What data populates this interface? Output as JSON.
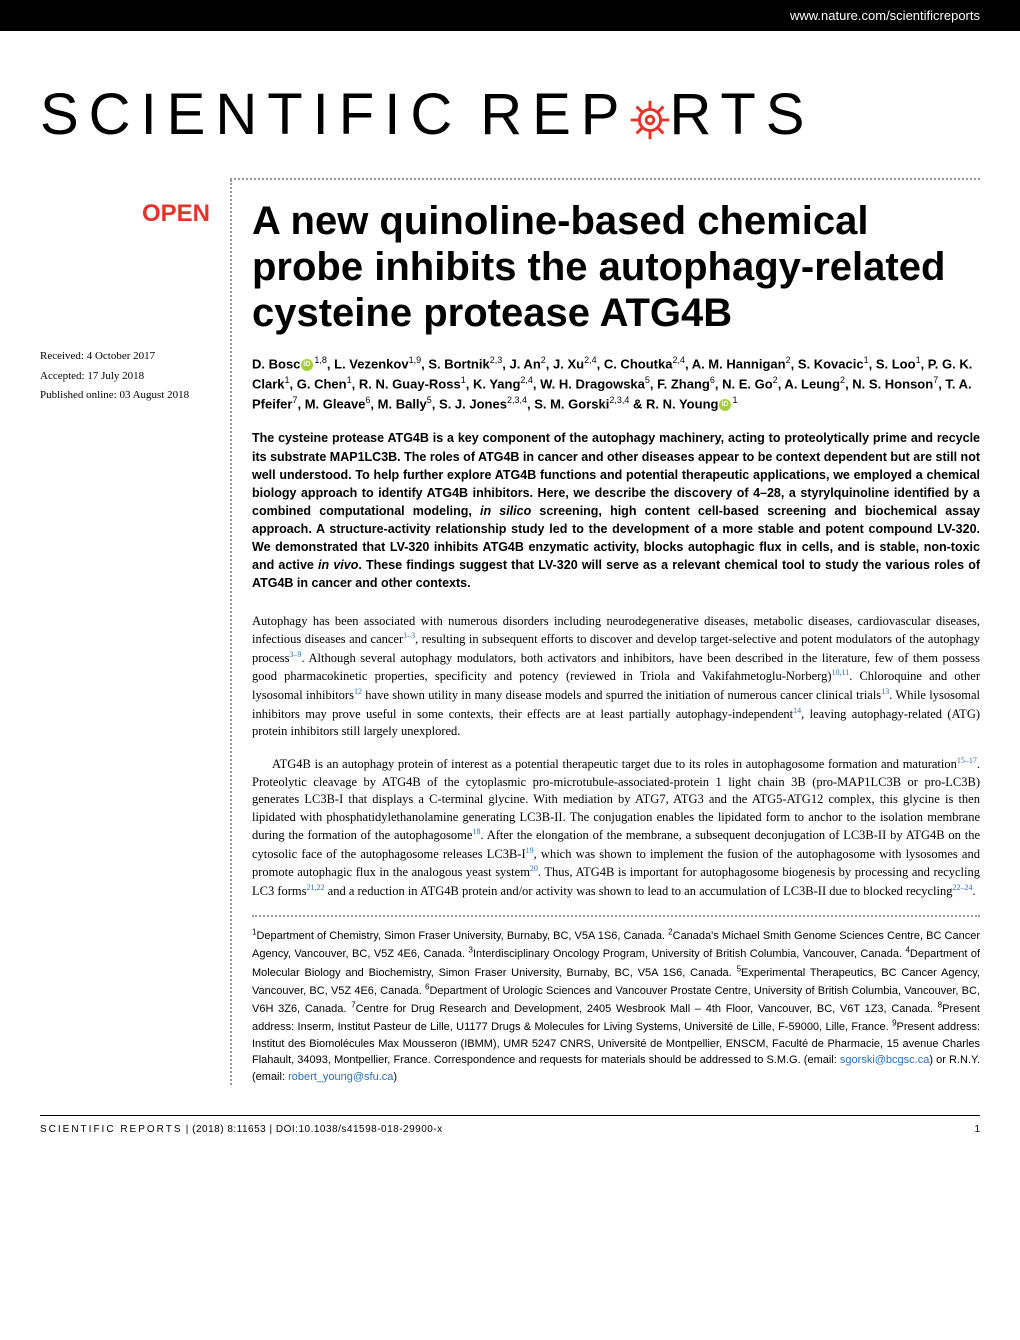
{
  "header": {
    "url": "www.nature.com/scientificreports"
  },
  "logo": {
    "text_before": "SCIENTIFIC",
    "text_mid": "REP",
    "text_after": "RTS",
    "gear_color": "#e63329"
  },
  "badge": {
    "open": "OPEN"
  },
  "dates": {
    "received": "Received: 4 October 2017",
    "accepted": "Accepted: 17 July 2018",
    "published": "Published online: 03 August 2018"
  },
  "title": "A new quinoline-based chemical probe inhibits the autophagy-related cysteine protease ATG4B",
  "authors_html": "D. Bosc|ORCID|<sup>1,8</sup>, L. Vezenkov<sup>1,9</sup>, S. Bortnik<sup>2,3</sup>, J. An<sup>2</sup>, J. Xu<sup>2,4</sup>, C. Choutka<sup>2,4</sup>, A. M. Hannigan<sup>2</sup>, S. Kovacic<sup>1</sup>, S. Loo<sup>1</sup>, P. G. K. Clark<sup>1</sup>, G. Chen<sup>1</sup>, R. N. Guay-Ross<sup>1</sup>, K. Yang<sup>2,4</sup>, W. H. Dragowska<sup>5</sup>, F. Zhang<sup>6</sup>, N. E. Go<sup>2</sup>, A. Leung<sup>2</sup>, N. S. Honson<sup>7</sup>, T. A. Pfeifer<sup>7</sup>, M. Gleave<sup>6</sup>, M. Bally<sup>5</sup>, S. J. Jones<sup>2,3,4</sup>, S. M. Gorski<sup>2,3,4</sup> & R. N. Young|ORCID|<sup>1</sup>",
  "abstract": "The cysteine protease ATG4B is a key component of the autophagy machinery, acting to proteolytically prime and recycle its substrate MAP1LC3B. The roles of ATG4B in cancer and other diseases appear to be context dependent but are still not well understood. To help further explore ATG4B functions and potential therapeutic applications, we employed a chemical biology approach to identify ATG4B inhibitors. Here, we describe the discovery of 4–28, a styrylquinoline identified by a combined computational modeling, in silico screening, high content cell-based screening and biochemical assay approach. A structure-activity relationship study led to the development of a more stable and potent compound LV-320. We demonstrated that LV-320 inhibits ATG4B enzymatic activity, blocks autophagic flux in cells, and is stable, non-toxic and active in vivo. These findings suggest that LV-320 will serve as a relevant chemical tool to study the various roles of ATG4B in cancer and other contexts.",
  "body": {
    "p1": "Autophagy has been associated with numerous disorders including neurodegenerative diseases, metabolic diseases, cardiovascular diseases, infectious diseases and cancer",
    "p1_ref1": "1–3",
    "p1_cont": ", resulting in subsequent efforts to discover and develop target-selective and potent modulators of the autophagy process",
    "p1_ref2": "3–9",
    "p1_cont2": ". Although several autophagy modulators, both activators and inhibitors, have been described in the literature, few of them possess good pharmacokinetic properties, specificity and potency (reviewed in Triola and Vakifahmetoglu-Norberg)",
    "p1_ref3": "10,11",
    "p1_cont3": ". Chloroquine and other lysosomal inhibitors",
    "p1_ref4": "12",
    "p1_cont4": " have shown utility in many disease models and spurred the initiation of numerous cancer clinical trials",
    "p1_ref5": "13",
    "p1_cont5": ". While lysosomal inhibitors may prove useful in some contexts, their effects are at least partially autophagy-independent",
    "p1_ref6": "14",
    "p1_cont6": ", leaving autophagy-related (ATG) protein inhibitors still largely unexplored.",
    "p2": "ATG4B is an autophagy protein of interest as a potential therapeutic target due to its roles in autophagosome formation and maturation",
    "p2_ref1": "15–17",
    "p2_cont": ". Proteolytic cleavage by ATG4B of the cytoplasmic pro-microtubule-associated-protein 1 light chain 3B (pro-MAP1LC3B or pro-LC3B) generates LC3B-I that displays a C-terminal glycine. With mediation by ATG7, ATG3 and the ATG5-ATG12 complex, this glycine is then lipidated with phosphatidylethanolamine generating LC3B-II. The conjugation enables the lipidated form to anchor to the isolation membrane during the formation of the autophagosome",
    "p2_ref2": "18",
    "p2_cont2": ". After the elongation of the membrane, a subsequent deconjugation of LC3B-II by ATG4B on the cytosolic face of the autophagosome releases LC3B-I",
    "p2_ref3": "19",
    "p2_cont3": ", which was shown to implement the fusion of the autophagosome with lysosomes and promote autophagic flux in the analogous yeast system",
    "p2_ref4": "20",
    "p2_cont4": ". Thus, ATG4B is important for autophagosome biogenesis by processing and recycling LC3 forms",
    "p2_ref5": "21,22",
    "p2_cont5": " and a reduction in ATG4B protein and/or activity was shown to lead to an accumulation of LC3B-II due to blocked recycling",
    "p2_ref6": "22–24",
    "p2_cont6": "."
  },
  "affiliations": "<sup>1</sup>Department of Chemistry, Simon Fraser University, Burnaby, BC, V5A 1S6, Canada. <sup>2</sup>Canada's Michael Smith Genome Sciences Centre, BC Cancer Agency, Vancouver, BC, V5Z 4E6, Canada. <sup>3</sup>Interdisciplinary Oncology Program, University of British Columbia, Vancouver, Canada. <sup>4</sup>Department of Molecular Biology and Biochemistry, Simon Fraser University, Burnaby, BC, V5A 1S6, Canada. <sup>5</sup>Experimental Therapeutics, BC Cancer Agency, Vancouver, BC, V5Z 4E6, Canada. <sup>6</sup>Department of Urologic Sciences and Vancouver Prostate Centre, University of British Columbia, Vancouver, BC, V6H 3Z6, Canada. <sup>7</sup>Centre for Drug Research and Development, 2405 Wesbrook Mall – 4th Floor, Vancouver, BC, V6T 1Z3, Canada. <sup>8</sup>Present address: Inserm, Institut Pasteur de Lille, U1177 Drugs & Molecules for Living Systems, Université de Lille, F-59000, Lille, France. <sup>9</sup>Present address: Institut des Biomolécules Max Mousseron (IBMM), UMR 5247 CNRS, Université de Montpellier, ENSCM, Faculté de Pharmacie, 15 avenue Charles Flahault, 34093, Montpellier, France. Correspondence and requests for materials should be addressed to S.M.G. (email: ",
  "email1": "sgorski@bcgsc.ca",
  "aff_mid": ") or R.N.Y. (email: ",
  "email2": "robert_young@sfu.ca",
  "aff_end": ")",
  "footer": {
    "journal": "SCIENTIFIC REPORTS",
    "citation": " | (2018) 8:11653 | DOI:10.1038/s41598-018-29900-x",
    "page": "1"
  },
  "colors": {
    "brand_red": "#e63329",
    "link_blue": "#2a6fb5",
    "orcid_green": "#a6ce39",
    "text": "#000000",
    "background": "#ffffff",
    "dotted": "#999999"
  }
}
